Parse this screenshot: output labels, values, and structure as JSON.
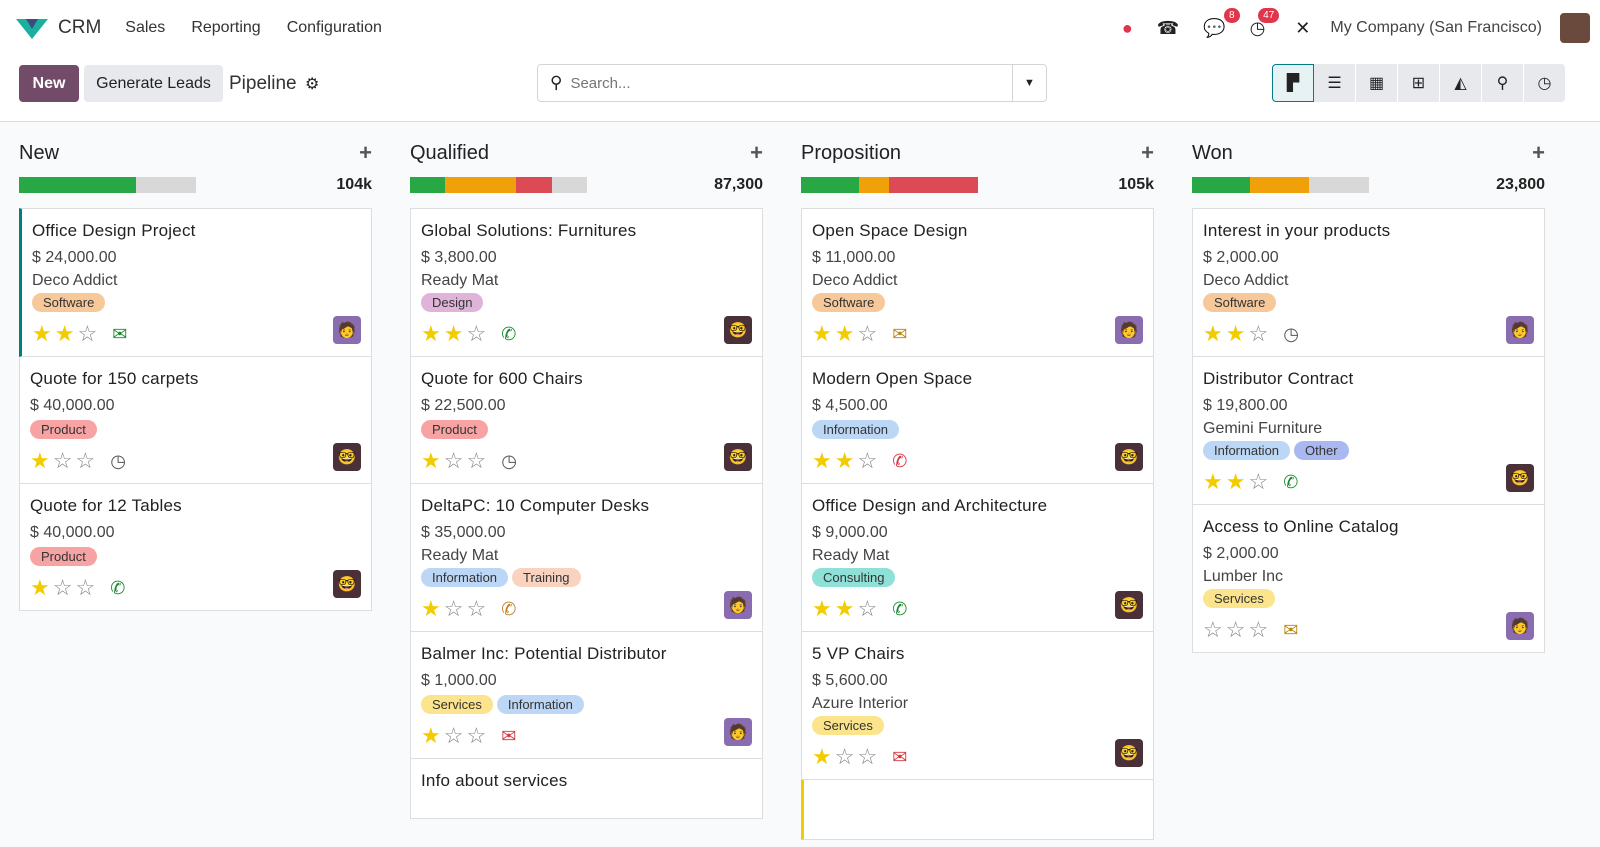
{
  "topbar": {
    "app": "CRM",
    "menus": [
      "Sales",
      "Reporting",
      "Configuration"
    ],
    "messages_count": "8",
    "activities_count": "47",
    "company": "My Company (San Francisco)"
  },
  "control": {
    "new_label": "New",
    "generate_label": "Generate Leads",
    "breadcrumb": "Pipeline",
    "search_placeholder": "Search..."
  },
  "views": [
    "kanban",
    "list",
    "calendar",
    "pivot",
    "graph",
    "map",
    "activity"
  ],
  "colors": {
    "green": "#28a745",
    "orange": "#f0a10a",
    "red": "#dc4a55",
    "grey": "#d8d8d8",
    "accent": "#714b67",
    "teal": "#017e84"
  },
  "columns": [
    {
      "title": "New",
      "total": "104k",
      "progress": {
        "green": 0.66,
        "orange": 0,
        "red": 0
      },
      "cards": [
        {
          "title": "Office Design Project",
          "revenue": "$ 24,000.00",
          "company": "Deco Addict",
          "tags": [
            "Software"
          ],
          "stars": 2,
          "activity": "envelope-green",
          "avatar": "bald",
          "border": "#017e84"
        },
        {
          "title": "Quote for 150 carpets",
          "revenue": "$ 40,000.00",
          "tags": [
            "Product"
          ],
          "stars": 1,
          "activity": "clock",
          "avatar": "glasses"
        },
        {
          "title": "Quote for 12 Tables",
          "revenue": "$ 40,000.00",
          "tags": [
            "Product"
          ],
          "stars": 1,
          "activity": "phone-green",
          "avatar": "glasses"
        }
      ]
    },
    {
      "title": "Qualified",
      "total": "87,300",
      "progress": {
        "green": 0.2,
        "orange": 0.4,
        "red": 0.2
      },
      "cards": [
        {
          "title": "Global Solutions: Furnitures",
          "revenue": "$ 3,800.00",
          "company": "Ready Mat",
          "tags": [
            "Design"
          ],
          "stars": 2,
          "activity": "phone-green",
          "avatar": "glasses"
        },
        {
          "title": "Quote for 600 Chairs",
          "revenue": "$ 22,500.00",
          "tags": [
            "Product"
          ],
          "stars": 1,
          "activity": "clock",
          "avatar": "glasses"
        },
        {
          "title": "DeltaPC: 10 Computer Desks",
          "revenue": "$ 35,000.00",
          "company": "Ready Mat",
          "tags": [
            "Information",
            "Training"
          ],
          "stars": 1,
          "activity": "phone-orange",
          "avatar": "bald"
        },
        {
          "title": "Balmer Inc: Potential Distributor",
          "revenue": "$ 1,000.00",
          "tags": [
            "Services",
            "Information"
          ],
          "stars": 1,
          "activity": "envelope-red",
          "avatar": "bald"
        },
        {
          "title": "Info about services",
          "partial": true
        }
      ]
    },
    {
      "title": "Proposition",
      "total": "105k",
      "progress": {
        "green": 0.33,
        "orange": 0.17,
        "red": 0.5
      },
      "cards": [
        {
          "title": "Open Space Design",
          "revenue": "$ 11,000.00",
          "company": "Deco Addict",
          "tags": [
            "Software"
          ],
          "stars": 2,
          "activity": "envelope-orange",
          "avatar": "bald"
        },
        {
          "title": "Modern Open Space",
          "revenue": "$ 4,500.00",
          "tags": [
            "Information"
          ],
          "stars": 2,
          "activity": "phone-red",
          "avatar": "glasses"
        },
        {
          "title": "Office Design and Architecture",
          "revenue": "$ 9,000.00",
          "company": "Ready Mat",
          "tags": [
            "Consulting"
          ],
          "stars": 2,
          "activity": "phone-green",
          "avatar": "glasses"
        },
        {
          "title": "5 VP Chairs",
          "revenue": "$ 5,600.00",
          "company": "Azure Interior",
          "tags": [
            "Services"
          ],
          "stars": 1,
          "activity": "envelope-red",
          "avatar": "glasses"
        },
        {
          "title": "",
          "partial": true,
          "border": "#f3cc00"
        }
      ]
    },
    {
      "title": "Won",
      "total": "23,800",
      "progress": {
        "green": 0.33,
        "orange": 0.33,
        "red": 0
      },
      "cards": [
        {
          "title": "Interest in your products",
          "revenue": "$ 2,000.00",
          "company": "Deco Addict",
          "tags": [
            "Software"
          ],
          "stars": 2,
          "activity": "clock",
          "avatar": "bald"
        },
        {
          "title": "Distributor Contract",
          "revenue": "$ 19,800.00",
          "company": "Gemini Furniture",
          "tags": [
            "Information",
            "Other"
          ],
          "stars": 2,
          "activity": "phone-green",
          "avatar": "glasses"
        },
        {
          "title": "Access to Online Catalog",
          "revenue": "$ 2,000.00",
          "company": "Lumber Inc",
          "tags": [
            "Services"
          ],
          "stars": 0,
          "activity": "envelope-orange",
          "avatar": "bald"
        }
      ]
    }
  ]
}
